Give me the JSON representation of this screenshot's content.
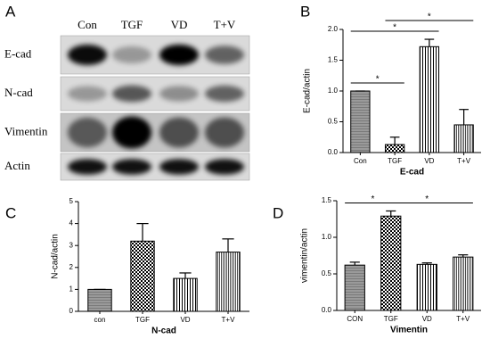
{
  "blot": {
    "panel": "A",
    "lanes": [
      "Con",
      "TGF",
      "VD",
      "T+V"
    ],
    "rows": [
      "E-cad",
      "N-cad",
      "Vimentin",
      "Actin"
    ]
  },
  "chart_data": [
    {
      "type": "bar",
      "panel": "B",
      "ylabel": "E-cad/actin",
      "xlabel": "E-cad",
      "categories": [
        "Con",
        "TGF",
        "VD",
        "T+V"
      ],
      "values": [
        1.0,
        0.13,
        1.72,
        0.45
      ],
      "errors": [
        0,
        0.12,
        0.12,
        0.25
      ],
      "ylim": [
        0,
        2.0
      ],
      "yticks": [
        {
          "value": 0,
          "label": "0.0"
        },
        {
          "value": 0.5,
          "label": "0.5"
        },
        {
          "value": 1.0,
          "label": "1.0"
        },
        {
          "value": 1.5,
          "label": "1.5"
        },
        {
          "value": 2.0,
          "label": "2.0"
        }
      ],
      "significance": [
        {
          "pair": [
            "Con",
            "TGF"
          ],
          "label": "*"
        },
        {
          "pair": [
            "Con",
            "VD"
          ],
          "label": "*"
        },
        {
          "pair": [
            "TGF",
            "T+V"
          ],
          "label": "*"
        }
      ]
    },
    {
      "type": "bar",
      "panel": "C",
      "ylabel": "N-cad/actin",
      "xlabel": "N-cad",
      "categories": [
        "con",
        "TGF",
        "VD",
        "T+V"
      ],
      "values": [
        1.0,
        3.2,
        1.5,
        2.7
      ],
      "errors": [
        0,
        0.8,
        0.25,
        0.6
      ],
      "ylim": [
        0,
        5
      ],
      "yticks": [
        0,
        1,
        2,
        3,
        4,
        5
      ],
      "significance": []
    },
    {
      "type": "bar",
      "panel": "D",
      "ylabel": "vimentin/actin",
      "xlabel": "Vimentin",
      "categories": [
        "CON",
        "TGF",
        "VD",
        "T+V"
      ],
      "values": [
        0.62,
        1.29,
        0.63,
        0.73
      ],
      "errors": [
        0.04,
        0.07,
        0.02,
        0.03
      ],
      "ylim": [
        0,
        1.5
      ],
      "yticks": [
        {
          "value": 0,
          "label": "0.0"
        },
        {
          "value": 0.5,
          "label": "0.5"
        },
        {
          "value": 1.0,
          "label": "1.0"
        },
        {
          "value": 1.5,
          "label": "1.5"
        }
      ],
      "significance": [
        {
          "pair": [
            "CON",
            "TGF"
          ],
          "label": "*"
        },
        {
          "pair": [
            "TGF",
            "T+V"
          ],
          "label": "*"
        }
      ]
    }
  ]
}
